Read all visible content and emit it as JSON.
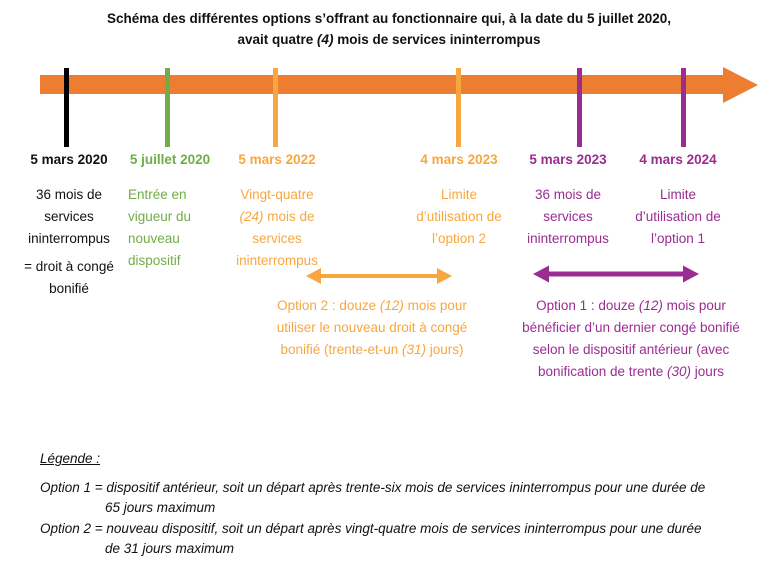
{
  "colors": {
    "orange": "#ED7D31",
    "green": "#70AD47",
    "gold": "#F8A73E",
    "purple": "#9B2C92",
    "ink": "#1A1A1A"
  },
  "title": {
    "line1": "Schéma des différentes options s’offrant au fonctionnaire qui, à la date du 5 juillet 2020,",
    "line2": [
      "avait quatre ",
      {
        "i": "(4)"
      },
      " mois de services ininterrompus"
    ]
  },
  "timeline": {
    "arrow_color": "#ED7D31",
    "events": [
      {
        "date": "5 mars 2020",
        "tick_color": "#000000",
        "lines": [
          [
            "36 mois de"
          ],
          [
            "services"
          ],
          [
            "ininterrompus"
          ],
          [
            "= droit à congé"
          ],
          [
            "bonifié"
          ]
        ]
      },
      {
        "date": "5 juillet 2020",
        "tick_color": "#70AD47",
        "lines": [
          [
            "Entrée en"
          ],
          [
            "vigueur du"
          ],
          [
            "nouveau"
          ],
          [
            "dispositif"
          ]
        ]
      },
      {
        "date": "5 mars 2022",
        "tick_color": "#F8A73E",
        "lines": [
          [
            "Vingt-quatre"
          ],
          [
            {
              "i": "(24)"
            },
            " mois de"
          ],
          [
            "services"
          ],
          [
            "ininterrompus"
          ]
        ]
      },
      {
        "date": "4 mars 2023",
        "tick_color": "#F8A73E",
        "lines": [
          [
            "Limite"
          ],
          [
            "d’utilisation de"
          ],
          [
            "l’option 2"
          ]
        ]
      },
      {
        "date": "5 mars 2023",
        "tick_color": "#9B2C92",
        "lines": [
          [
            "36 mois de"
          ],
          [
            "services"
          ],
          [
            "ininterrompus"
          ]
        ]
      },
      {
        "date": "4 mars 2024",
        "tick_color": "#9B2C92",
        "lines": [
          [
            "Limite"
          ],
          [
            "d’utilisation de"
          ],
          [
            "l’option 1"
          ]
        ]
      }
    ]
  },
  "options": {
    "option2": {
      "color": "#F8A73E",
      "lines": [
        [
          "Option 2 : douze ",
          {
            "i": "(12)"
          },
          " mois pour"
        ],
        [
          "utiliser le nouveau droit à congé"
        ],
        [
          "bonifié (trente-et-un ",
          {
            "i": "(31)"
          },
          " jours)"
        ]
      ]
    },
    "option1": {
      "color": "#9B2C92",
      "lines": [
        [
          "Option 1 : douze ",
          {
            "i": "(12)"
          },
          " mois pour"
        ],
        [
          "bénéficier d’un dernier congé bonifié"
        ],
        [
          "selon le dispositif antérieur (avec"
        ],
        [
          "bonification de trente ",
          {
            "i": "(30)"
          },
          " jours"
        ]
      ]
    }
  },
  "legend": {
    "title": "Légende :",
    "entries": [
      {
        "line1": "Option 1 = dispositif antérieur, soit un départ après trente-six mois de services ininterrompus pour une durée de",
        "line2": "65 jours maximum"
      },
      {
        "line1": "Option 2 = nouveau dispositif, soit un départ après vingt-quatre mois de services ininterrompus pour une durée",
        "line2": "de 31 jours maximum"
      }
    ]
  }
}
